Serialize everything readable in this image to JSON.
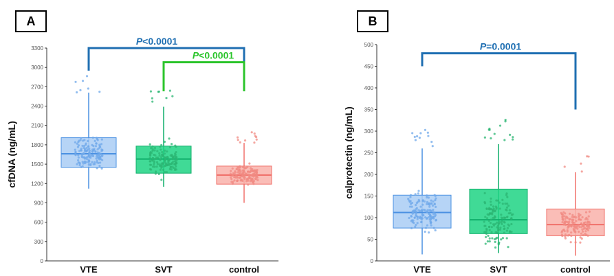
{
  "chart_data": [
    {
      "type": "box",
      "panel_label": "A",
      "ylabel": "cfDNA  (ng/mL)",
      "ylim": [
        0,
        3300
      ],
      "yticks": [
        "0",
        "300",
        "600",
        "900",
        "1200",
        "1500",
        "1800",
        "2100",
        "2400",
        "2700",
        "3000",
        "3300"
      ],
      "categories": [
        "VTE",
        "SVT",
        "control"
      ],
      "boxes": [
        {
          "category": "VTE",
          "whisker_low": 1120,
          "q1": 1450,
          "median": 1660,
          "q3": 1910,
          "whisker_high": 2610,
          "fill": "#a9ccf5",
          "stroke": "#4a90e2",
          "point_color": "#6fa8ea"
        },
        {
          "category": "SVT",
          "whisker_low": 1150,
          "q1": 1360,
          "median": 1580,
          "q3": 1780,
          "whisker_high": 2390,
          "fill": "#1fd384",
          "stroke": "#0fae6a",
          "point_color": "#2bb673"
        },
        {
          "category": "control",
          "whisker_low": 900,
          "q1": 1190,
          "median": 1330,
          "q3": 1470,
          "whisker_high": 1830,
          "fill": "#f9b1aa",
          "stroke": "#f0706a",
          "point_color": "#f08a82"
        }
      ],
      "annotations": [
        {
          "label": "P<0.0001",
          "italic_prefix": "P",
          "rest": "<0.0001",
          "from": "VTE",
          "to": "control",
          "level": 3300,
          "left_drop": 2950,
          "right_drop": 3080,
          "color": "#1f6fb2"
        },
        {
          "label": "P<0.0001",
          "italic_prefix": "P",
          "rest": "<0.0001",
          "from": "SVT",
          "to": "control",
          "level": 3080,
          "left_drop": 2630,
          "right_drop": 2630,
          "color": "#2bc42b"
        }
      ]
    },
    {
      "type": "box",
      "panel_label": "B",
      "ylabel": "calprotectin  (ng/mL)",
      "ylim": [
        0,
        500
      ],
      "yticks": [
        "0",
        "50",
        "100",
        "150",
        "200",
        "250",
        "300",
        "350",
        "400",
        "450",
        "500"
      ],
      "categories": [
        "VTE",
        "SVT",
        "control"
      ],
      "boxes": [
        {
          "category": "VTE",
          "whisker_low": 15,
          "q1": 76,
          "median": 112,
          "q3": 152,
          "whisker_high": 260,
          "fill": "#a9ccf5",
          "stroke": "#4a90e2",
          "point_color": "#6fa8ea"
        },
        {
          "category": "SVT",
          "whisker_low": 18,
          "q1": 63,
          "median": 95,
          "q3": 166,
          "whisker_high": 270,
          "fill": "#1fd384",
          "stroke": "#0fae6a",
          "point_color": "#2bb673"
        },
        {
          "category": "control",
          "whisker_low": 12,
          "q1": 58,
          "median": 84,
          "q3": 120,
          "whisker_high": 205,
          "fill": "#f9b1aa",
          "stroke": "#f0706a",
          "point_color": "#f08a82"
        }
      ],
      "annotations": [
        {
          "label": "P=0.0001",
          "italic_prefix": "P",
          "rest": "=0.0001",
          "from": "VTE",
          "to": "control",
          "level": 480,
          "left_drop": 450,
          "right_drop": 350,
          "color": "#1f6fb2"
        }
      ]
    }
  ]
}
